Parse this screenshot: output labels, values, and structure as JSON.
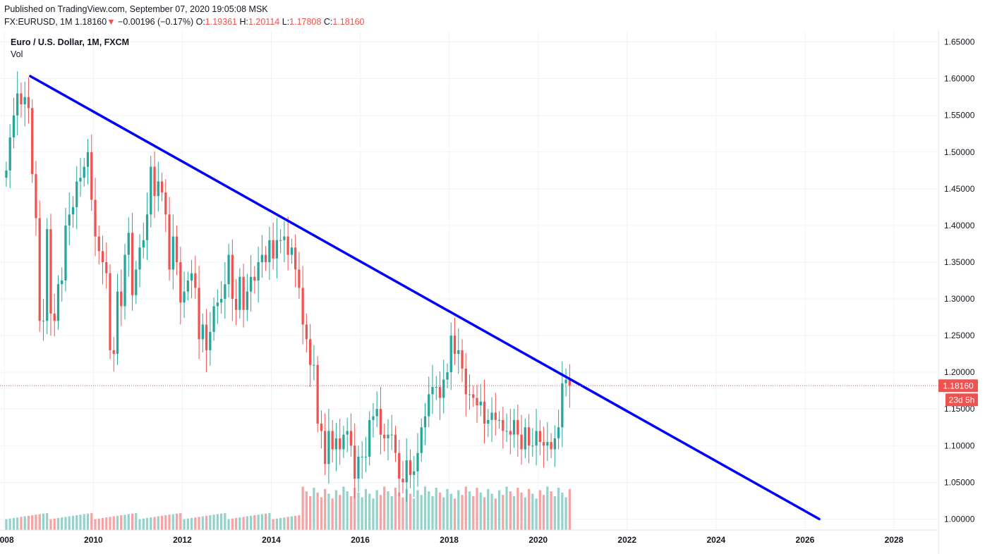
{
  "header": {
    "published": "Published on TradingView.com, September 07, 2020 19:05:08 MSK",
    "symbol": "FX:EURUSD, 1M",
    "last": "1.18160",
    "down_arrow": "▼",
    "change": "−0.00196 (−0.17%)",
    "o_label": "O:",
    "o_value": "1.19361",
    "h_label": "H:",
    "h_value": "1.20114",
    "l_label": "L:",
    "l_value": "1.17808",
    "c_label": "C:",
    "c_value": "1.18160"
  },
  "legend": {
    "title": "Euro / U.S. Dollar, 1M, FXCM",
    "volume": "Vol"
  },
  "colors": {
    "up": "#26a69a",
    "down": "#ef5350",
    "vol_up": "#95d2cb",
    "vol_down": "#f5a3a3",
    "trendline": "#0000ff",
    "grid": "#f0f3fa",
    "axis_text": "#131722",
    "price_tag_bg": "#ef5350",
    "price_tag_text": "#ffffff"
  },
  "chart_data": {
    "type": "candlestick",
    "title": "Euro / U.S. Dollar, 1M, FXCM",
    "xlim": [
      2007.9,
      2029.0
    ],
    "ylim": [
      0.985,
      1.665
    ],
    "xticks": [
      2008,
      2010,
      2012,
      2014,
      2016,
      2018,
      2020,
      2022,
      2024,
      2026,
      2028
    ],
    "xtick_labels": [
      "2008",
      "2010",
      "2012",
      "2014",
      "2016",
      "2018",
      "2020",
      "2022",
      "2024",
      "2026",
      "2028"
    ],
    "yticks": [
      1.0,
      1.05,
      1.1,
      1.15,
      1.2,
      1.25,
      1.3,
      1.35,
      1.4,
      1.45,
      1.5,
      1.55,
      1.6,
      1.65
    ],
    "ytick_labels": [
      "1.00000",
      "1.05000",
      "1.10000",
      "1.15000",
      "1.20000",
      "1.25000",
      "1.30000",
      "1.35000",
      "1.40000",
      "1.45000",
      "1.50000",
      "1.55000",
      "1.60000",
      "1.65000"
    ],
    "grid": true,
    "last_price": 1.1816,
    "last_price_label": "1.18160",
    "countdown_label": "23d 5h",
    "trendline": {
      "x1": 2008.58,
      "y1": 1.6035,
      "x2": 2026.32,
      "y2": 1.0
    },
    "closes": [
      1.475,
      1.52,
      1.55,
      1.58,
      1.565,
      1.575,
      1.56,
      1.47,
      1.41,
      1.27,
      1.27,
      1.395,
      1.28,
      1.27,
      1.32,
      1.325,
      1.4,
      1.415,
      1.425,
      1.46,
      1.465,
      1.48,
      1.5,
      1.435,
      1.385,
      1.365,
      1.35,
      1.335,
      1.23,
      1.225,
      1.31,
      1.29,
      1.36,
      1.39,
      1.305,
      1.34,
      1.37,
      1.38,
      1.415,
      1.48,
      1.44,
      1.46,
      1.445,
      1.415,
      1.34,
      1.385,
      1.35,
      1.295,
      1.31,
      1.325,
      1.335,
      1.315,
      1.245,
      1.265,
      1.23,
      1.255,
      1.29,
      1.295,
      1.3,
      1.32,
      1.36,
      1.3,
      1.285,
      1.33,
      1.285,
      1.31,
      1.33,
      1.325,
      1.35,
      1.36,
      1.35,
      1.38,
      1.355,
      1.38,
      1.38,
      1.385,
      1.36,
      1.37,
      1.34,
      1.315,
      1.265,
      1.245,
      1.21,
      1.21,
      1.13,
      1.12,
      1.075,
      1.12,
      1.095,
      1.11,
      1.095,
      1.115,
      1.12,
      1.1,
      1.055,
      1.085,
      1.085,
      1.085,
      1.135,
      1.14,
      1.15,
      1.115,
      1.11,
      1.115,
      1.115,
      1.09,
      1.055,
      1.05,
      1.08,
      1.06,
      1.065,
      1.09,
      1.125,
      1.14,
      1.17,
      1.18,
      1.18,
      1.165,
      1.19,
      1.2,
      1.25,
      1.225,
      1.23,
      1.205,
      1.17,
      1.17,
      1.165,
      1.155,
      1.16,
      1.13,
      1.135,
      1.145,
      1.135,
      1.135,
      1.12,
      1.12,
      1.115,
      1.135,
      1.115,
      1.095,
      1.125,
      1.1,
      1.1,
      1.12,
      1.105,
      1.1,
      1.105,
      1.095,
      1.11,
      1.125,
      1.185,
      1.19,
      1.1816
    ]
  }
}
